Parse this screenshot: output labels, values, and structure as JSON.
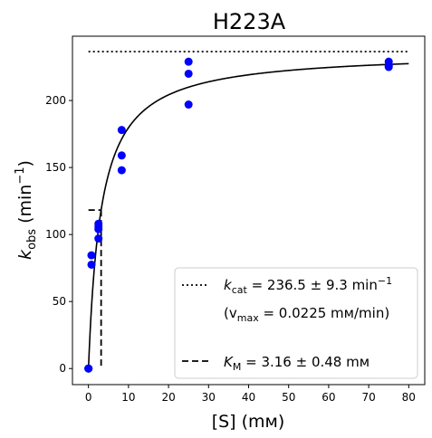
{
  "chart_data": {
    "type": "scatter",
    "title": "H223A",
    "xlabel": {
      "text": "[S] (mм)"
    },
    "ylabel": {
      "base": "k",
      "sub": "obs",
      "pre": " (min",
      "sup": "−1",
      "post": ")"
    },
    "xlim": [
      -4,
      84
    ],
    "ylim": [
      -12,
      248
    ],
    "xticks": [
      0,
      10,
      20,
      30,
      40,
      50,
      60,
      70,
      80
    ],
    "yticks": [
      0,
      50,
      100,
      150,
      200
    ],
    "grid": false,
    "legend_position": "lower-right",
    "colors": {
      "points": "#0000ff",
      "lines": "#000000"
    },
    "series": [
      {
        "kind": "points",
        "x": [
          0,
          0,
          0,
          0.75,
          0.75,
          2.5,
          2.5,
          2.5,
          2.5,
          8.3,
          8.3,
          8.3,
          25,
          25,
          25,
          75,
          75,
          75
        ],
        "y": [
          0,
          0,
          0,
          84.5,
          77.5,
          108,
          104,
          97,
          106,
          178,
          159,
          148,
          229,
          220,
          197,
          229,
          226,
          225
        ]
      },
      {
        "kind": "fit",
        "model": "michaelis-menten",
        "kcat": 236.5,
        "km": 3.16,
        "x_range": [
          0,
          80
        ]
      },
      {
        "kind": "hline",
        "y": 236.5,
        "x_range": [
          0,
          80
        ],
        "style": "dotted"
      },
      {
        "kind": "km-marker",
        "x": 3.16,
        "y": 118.25,
        "x_start": 0,
        "style": "dashed"
      }
    ],
    "legend": [
      {
        "style": "dotted",
        "line1": {
          "pre": "",
          "base": "k",
          "sub": "cat",
          "mid": " = 236.5 ± 9.3 min",
          "sup": "−1"
        },
        "line2": {
          "text": "(v",
          "sub": "max",
          "post": " = 0.0225 mм/min)"
        }
      },
      {
        "style": "dashed",
        "line1": {
          "base": "K",
          "sub": "M",
          "mid": " = 3.16 ± 0.48 mм"
        }
      }
    ]
  }
}
